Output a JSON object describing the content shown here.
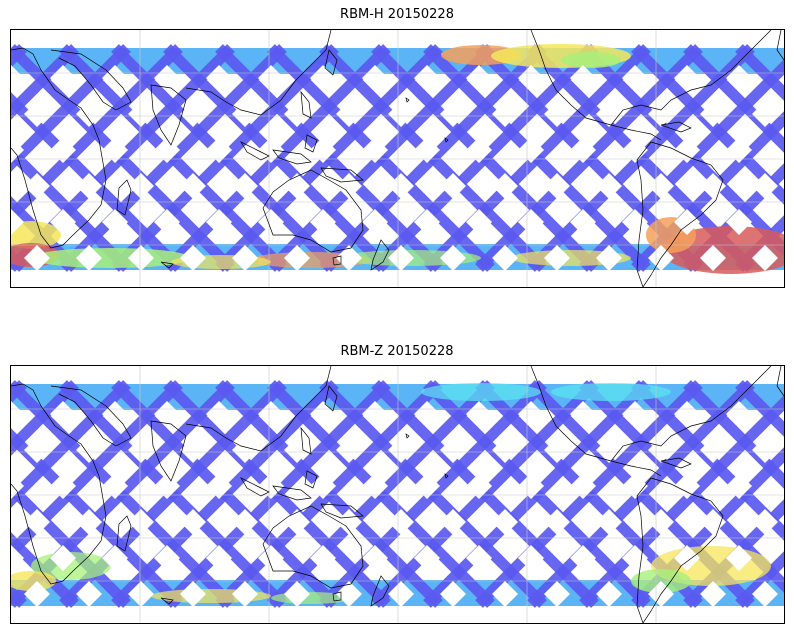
{
  "panels": [
    {
      "title": "RBM-H 20150228",
      "colors": {
        "low": "#5a5af0",
        "mid_low": "#5ab4f5",
        "mid": "#5ae6f0",
        "mid_high": "#a8f07a",
        "high_yellow": "#f5e65a",
        "high_orange": "#f5a05a",
        "highest": "#d85a5a"
      }
    },
    {
      "title": "RBM-Z 20150228",
      "colors": {
        "low": "#5a5af0",
        "mid_low": "#5ab4f5",
        "mid": "#5ae6f0",
        "mid_high": "#a8f07a",
        "high_yellow": "#f5e65a"
      }
    }
  ]
}
